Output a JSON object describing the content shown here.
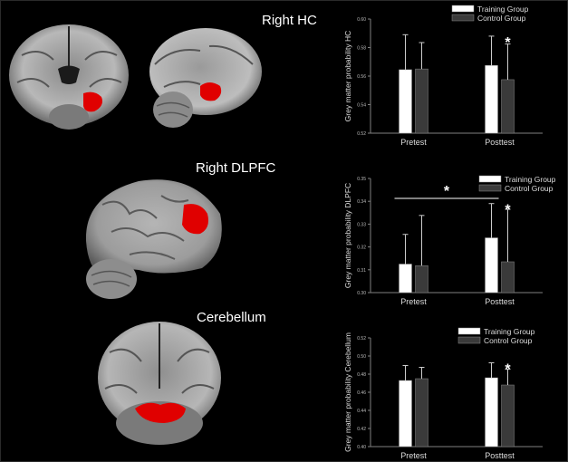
{
  "panels": [
    {
      "title": "Right HC",
      "brain_views": [
        "coronal",
        "sagittal"
      ]
    },
    {
      "title": "Right DLPFC",
      "brain_views": [
        "lateral"
      ]
    },
    {
      "title": "Cerebellum",
      "brain_views": [
        "coronal"
      ]
    }
  ],
  "colors": {
    "background": "#000000",
    "training": "#ffffff",
    "control": "#3a3a3a",
    "highlight": "#e00000",
    "axis": "#7f7f7f"
  },
  "chart_data": [
    {
      "type": "bar",
      "categories": [
        "Pretest",
        "Posttest"
      ],
      "ylabel": "Grey matter probability HC",
      "ylim": [
        0.52,
        0.6
      ],
      "yticks": [
        "0.52",
        "0.54",
        "0.56",
        "0.58",
        "0.60"
      ],
      "series": [
        {
          "name": "Training Group",
          "values": [
            0.5645,
            0.5675
          ],
          "errors": [
            0.0245,
            0.0205
          ]
        },
        {
          "name": "Control Group",
          "values": [
            0.565,
            0.5575
          ],
          "errors": [
            0.0185,
            0.025
          ]
        }
      ],
      "annotations": [
        {
          "text": "*",
          "category": "Posttest",
          "type": "group_difference"
        }
      ]
    },
    {
      "type": "bar",
      "categories": [
        "Pretest",
        "Posttest"
      ],
      "ylabel": "Grey matter probability DLPFC",
      "ylim": [
        0.3,
        0.35
      ],
      "yticks": [
        "0.30",
        "0.31",
        "0.32",
        "0.33",
        "0.34",
        "0.35"
      ],
      "series": [
        {
          "name": "Training Group",
          "values": [
            0.3125,
            0.324
          ],
          "errors": [
            0.013,
            0.015
          ]
        },
        {
          "name": "Control Group",
          "values": [
            0.3118,
            0.3135
          ],
          "errors": [
            0.022,
            0.023
          ]
        }
      ],
      "annotations": [
        {
          "text": "*",
          "category": "Posttest",
          "type": "group_difference"
        },
        {
          "text": "*",
          "type": "time_difference",
          "from": "Pretest",
          "to": "Posttest"
        }
      ]
    },
    {
      "type": "bar",
      "categories": [
        "Pretest",
        "Posttest"
      ],
      "ylabel": "Grey matter probability Cerebellum",
      "ylim": [
        0.4,
        0.52
      ],
      "yticks": [
        "0.40",
        "0.42",
        "0.44",
        "0.46",
        "0.48",
        "0.50",
        "0.52"
      ],
      "series": [
        {
          "name": "Training Group",
          "values": [
            0.473,
            0.476
          ],
          "errors": [
            0.0165,
            0.0165
          ]
        },
        {
          "name": "Control Group",
          "values": [
            0.475,
            0.468
          ],
          "errors": [
            0.0125,
            0.0175
          ]
        }
      ],
      "annotations": [
        {
          "text": "*",
          "category": "Posttest",
          "type": "group_difference"
        }
      ]
    }
  ]
}
